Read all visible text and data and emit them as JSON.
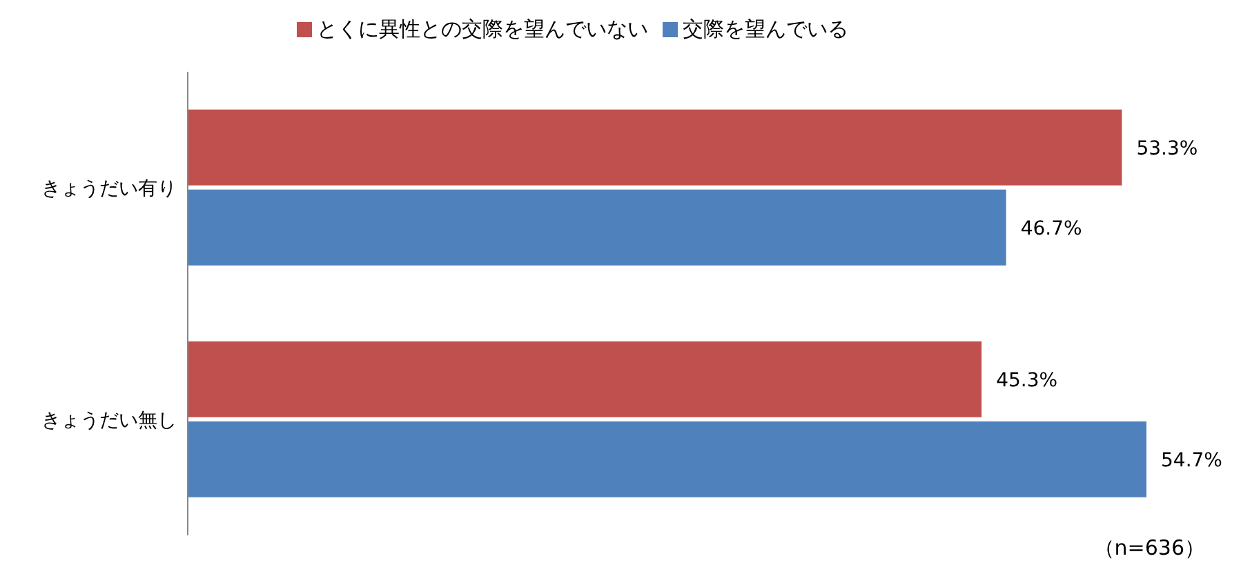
{
  "chart_data": {
    "type": "bar",
    "orientation": "horizontal",
    "categories": [
      "きょうだい有り",
      "きょうだい無し"
    ],
    "series": [
      {
        "name": "とくに異性との交際を望んでいない",
        "color": "#c0504d",
        "values": [
          53.3,
          45.3
        ],
        "value_labels": [
          "53.3%",
          "45.3%"
        ]
      },
      {
        "name": "交際を望んでいる",
        "color": "#4f81bd",
        "values": [
          46.7,
          54.7
        ],
        "value_labels": [
          "46.7%",
          "54.7%"
        ]
      }
    ],
    "legend": "top",
    "annotations": [
      "（n=636）"
    ]
  }
}
